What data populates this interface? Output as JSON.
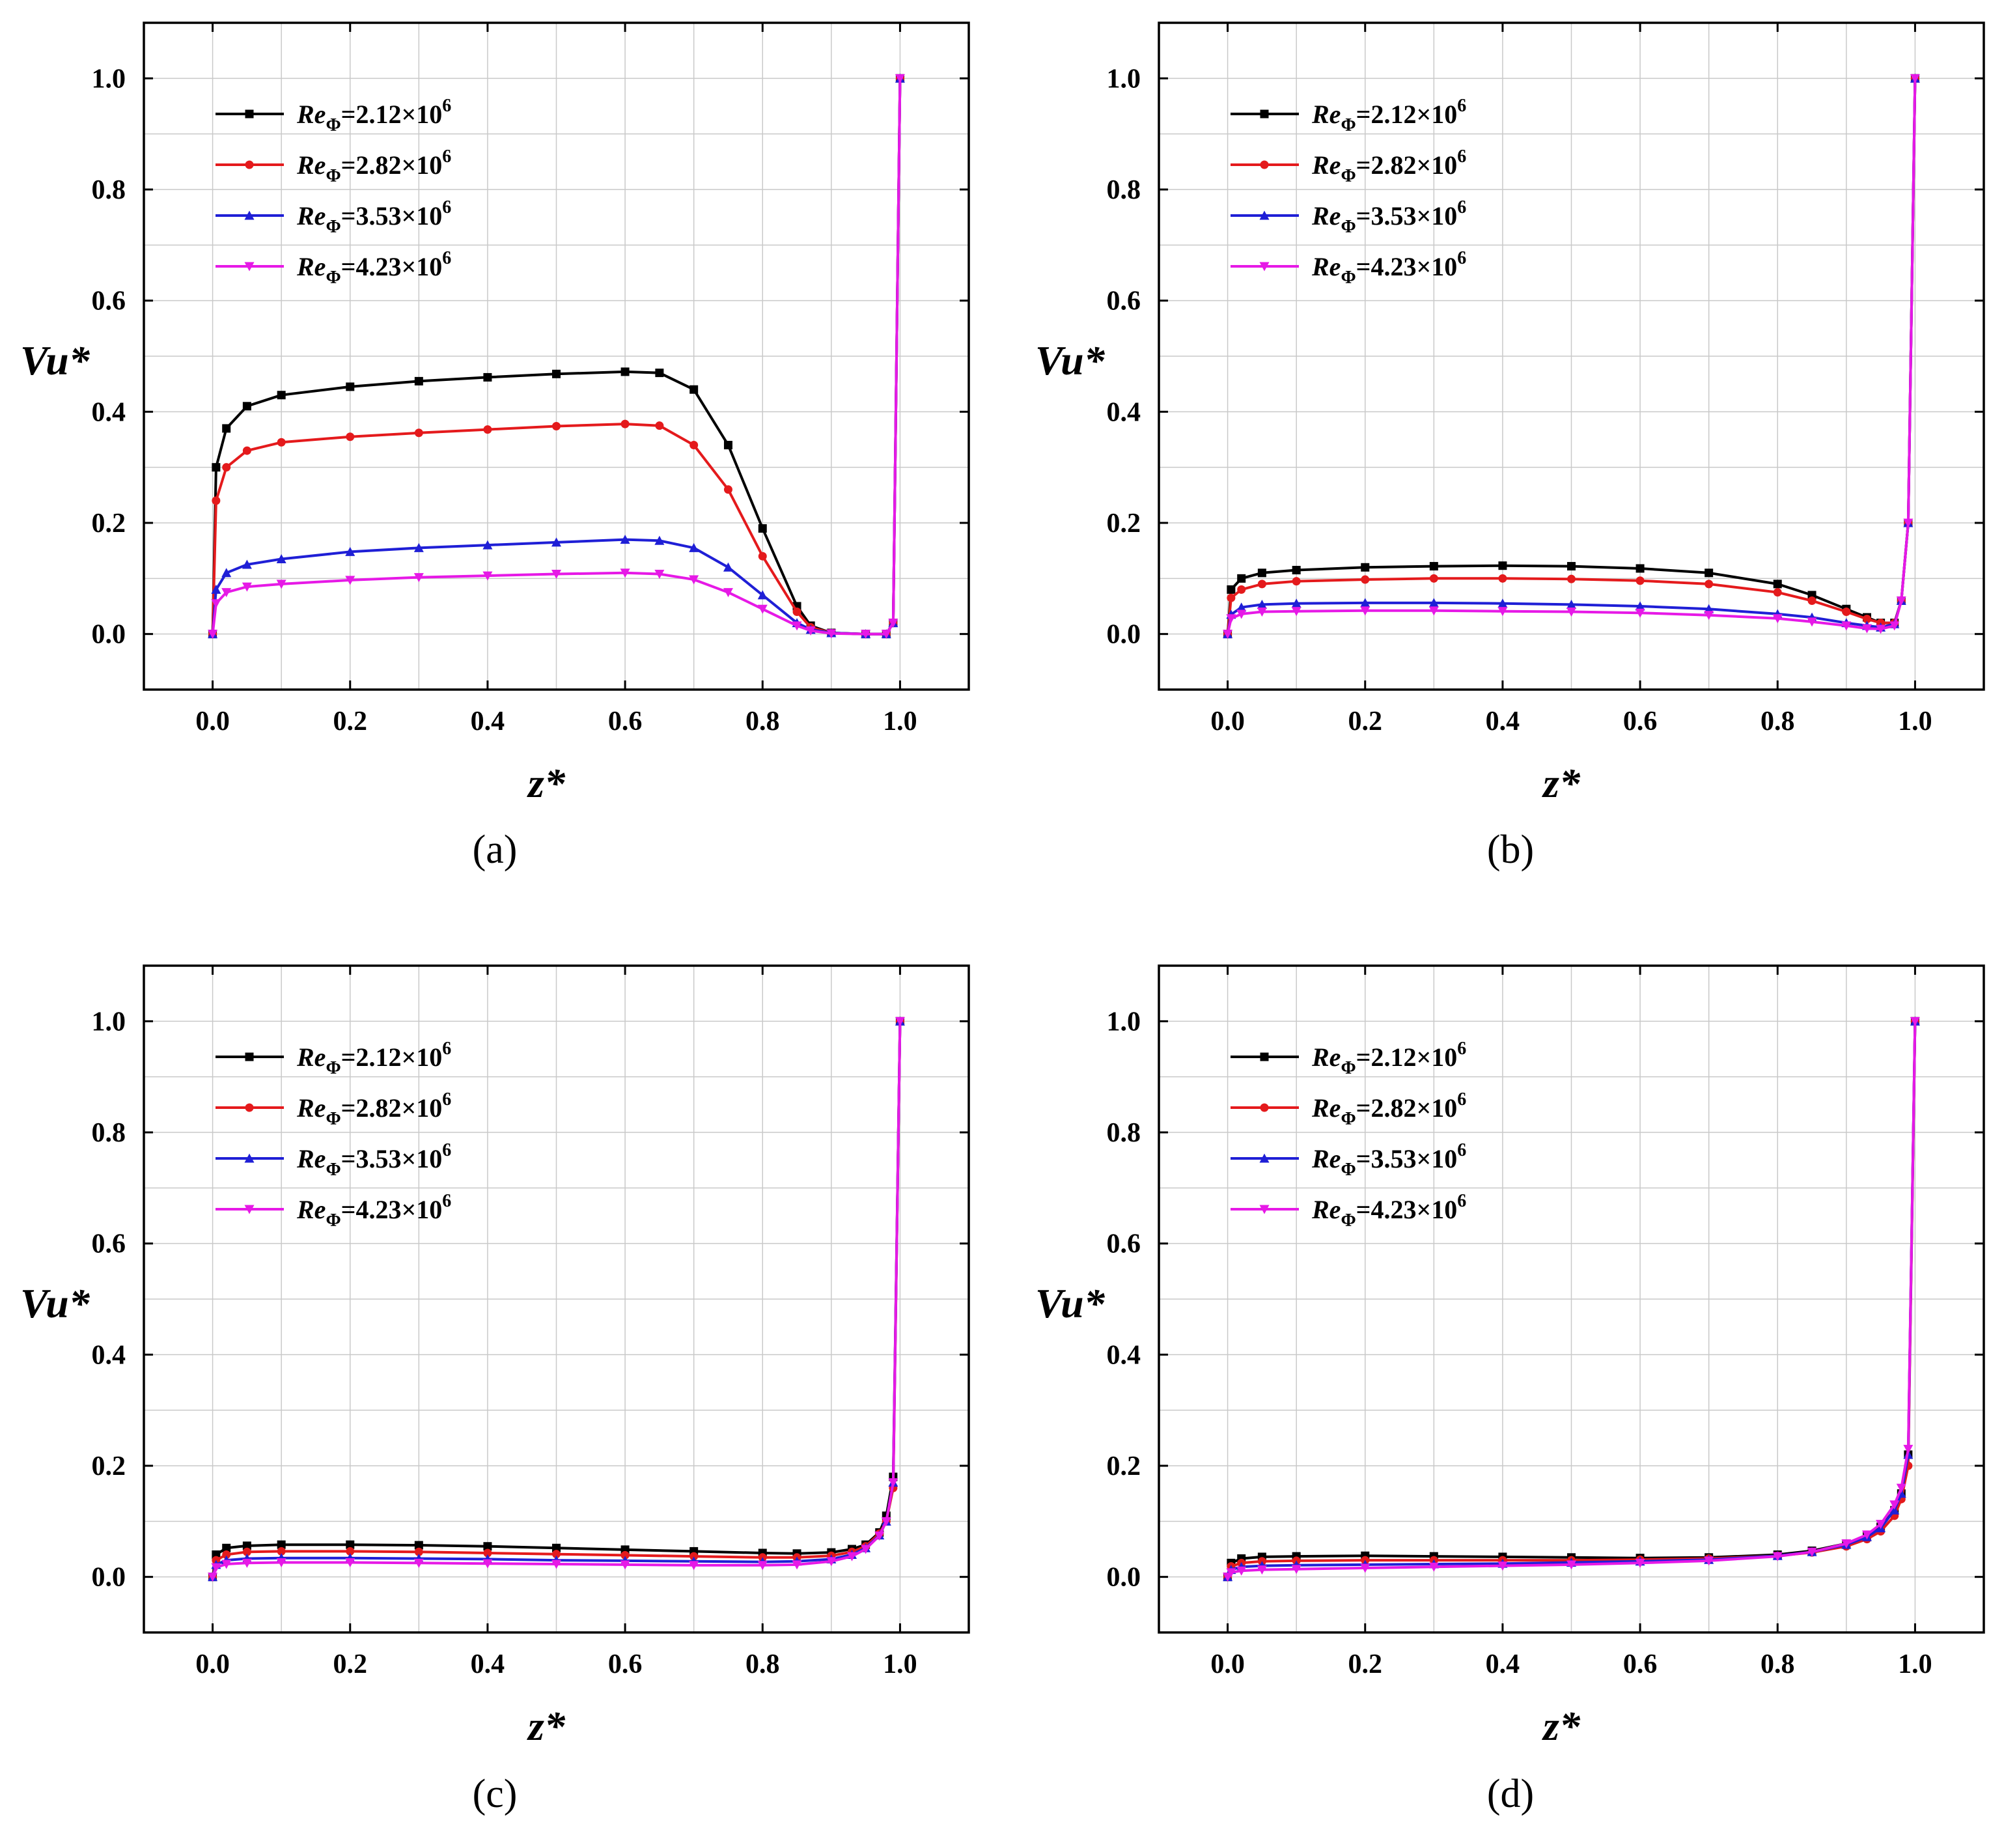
{
  "figure": {
    "x_ticks": [
      "0.0",
      "0.2",
      "0.4",
      "0.6",
      "0.8",
      "1.0"
    ],
    "y_ticks": [
      "0.0",
      "0.2",
      "0.4",
      "0.6",
      "0.8",
      "1.0"
    ]
  },
  "chart_data": [
    {
      "panel": "(a)",
      "type": "line",
      "xlabel": "z*",
      "ylabel": "Vu*",
      "xlim": [
        -0.1,
        1.1
      ],
      "ylim": [
        -0.1,
        1.1
      ],
      "grid": true,
      "legend": "top-left",
      "series": [
        {
          "name": "ReΦ=2.12×10⁶",
          "label_base": "Re",
          "label_sub": "Φ",
          "label_value": "=2.12×10",
          "label_exp": "6",
          "color": "#000000",
          "marker": "square",
          "x": [
            0,
            0.005,
            0.02,
            0.05,
            0.1,
            0.2,
            0.3,
            0.4,
            0.5,
            0.6,
            0.65,
            0.7,
            0.75,
            0.8,
            0.85,
            0.87,
            0.9,
            0.95,
            0.98,
            0.99,
            1.0
          ],
          "y": [
            0,
            0.3,
            0.37,
            0.41,
            0.43,
            0.445,
            0.455,
            0.462,
            0.468,
            0.472,
            0.47,
            0.44,
            0.34,
            0.19,
            0.05,
            0.015,
            0.002,
            0,
            0,
            0.02,
            1.0
          ]
        },
        {
          "name": "ReΦ=2.82×10⁶",
          "label_base": "Re",
          "label_sub": "Φ",
          "label_value": "=2.82×10",
          "label_exp": "6",
          "color": "#e41a1c",
          "marker": "circle",
          "x": [
            0,
            0.005,
            0.02,
            0.05,
            0.1,
            0.2,
            0.3,
            0.4,
            0.5,
            0.6,
            0.65,
            0.7,
            0.75,
            0.8,
            0.85,
            0.87,
            0.9,
            0.95,
            0.98,
            0.99,
            1.0
          ],
          "y": [
            0,
            0.24,
            0.3,
            0.33,
            0.345,
            0.355,
            0.362,
            0.368,
            0.374,
            0.378,
            0.375,
            0.34,
            0.26,
            0.14,
            0.04,
            0.012,
            0.002,
            0,
            0,
            0.02,
            1.0
          ]
        },
        {
          "name": "ReΦ=3.53×10⁶",
          "label_base": "Re",
          "label_sub": "Φ",
          "label_value": "=3.53×10",
          "label_exp": "6",
          "color": "#1f1fd6",
          "marker": "triangle",
          "x": [
            0,
            0.005,
            0.02,
            0.05,
            0.1,
            0.2,
            0.3,
            0.4,
            0.5,
            0.6,
            0.65,
            0.7,
            0.75,
            0.8,
            0.85,
            0.87,
            0.9,
            0.95,
            0.98,
            0.99,
            1.0
          ],
          "y": [
            0,
            0.08,
            0.11,
            0.125,
            0.135,
            0.148,
            0.155,
            0.16,
            0.165,
            0.17,
            0.168,
            0.155,
            0.12,
            0.07,
            0.02,
            0.008,
            0.002,
            0,
            0,
            0.02,
            1.0
          ]
        },
        {
          "name": "ReΦ=4.23×10⁶",
          "label_base": "Re",
          "label_sub": "Φ",
          "label_value": "=4.23×10",
          "label_exp": "6",
          "color": "#e619e6",
          "marker": "triangle-down",
          "x": [
            0,
            0.005,
            0.02,
            0.05,
            0.1,
            0.2,
            0.3,
            0.4,
            0.5,
            0.6,
            0.65,
            0.7,
            0.75,
            0.8,
            0.85,
            0.87,
            0.9,
            0.95,
            0.98,
            0.99,
            1.0
          ],
          "y": [
            0,
            0.055,
            0.075,
            0.085,
            0.09,
            0.097,
            0.102,
            0.105,
            0.108,
            0.11,
            0.108,
            0.098,
            0.075,
            0.045,
            0.015,
            0.006,
            0.001,
            0,
            0,
            0.02,
            1.0
          ]
        }
      ]
    },
    {
      "panel": "(b)",
      "type": "line",
      "xlabel": "z*",
      "ylabel": "Vu*",
      "xlim": [
        -0.1,
        1.1
      ],
      "ylim": [
        -0.1,
        1.1
      ],
      "grid": true,
      "legend": "top-left",
      "series": [
        {
          "name": "ReΦ=2.12×10⁶",
          "label_base": "Re",
          "label_sub": "Φ",
          "label_value": "=2.12×10",
          "label_exp": "6",
          "color": "#000000",
          "marker": "square",
          "x": [
            0,
            0.005,
            0.02,
            0.05,
            0.1,
            0.2,
            0.3,
            0.4,
            0.5,
            0.6,
            0.7,
            0.8,
            0.85,
            0.9,
            0.93,
            0.95,
            0.97,
            0.98,
            0.99,
            1.0
          ],
          "y": [
            0,
            0.08,
            0.1,
            0.11,
            0.115,
            0.12,
            0.122,
            0.123,
            0.122,
            0.118,
            0.11,
            0.09,
            0.07,
            0.045,
            0.03,
            0.02,
            0.02,
            0.06,
            0.2,
            1.0
          ]
        },
        {
          "name": "ReΦ=2.82×10⁶",
          "label_base": "Re",
          "label_sub": "Φ",
          "label_value": "=2.82×10",
          "label_exp": "6",
          "color": "#e41a1c",
          "marker": "circle",
          "x": [
            0,
            0.005,
            0.02,
            0.05,
            0.1,
            0.2,
            0.3,
            0.4,
            0.5,
            0.6,
            0.7,
            0.8,
            0.85,
            0.9,
            0.93,
            0.95,
            0.97,
            0.98,
            0.99,
            1.0
          ],
          "y": [
            0,
            0.065,
            0.08,
            0.09,
            0.095,
            0.098,
            0.1,
            0.1,
            0.099,
            0.096,
            0.09,
            0.075,
            0.06,
            0.04,
            0.027,
            0.02,
            0.02,
            0.06,
            0.2,
            1.0
          ]
        },
        {
          "name": "ReΦ=3.53×10⁶",
          "label_base": "Re",
          "label_sub": "Φ",
          "label_value": "=3.53×10",
          "label_exp": "6",
          "color": "#1f1fd6",
          "marker": "triangle",
          "x": [
            0,
            0.005,
            0.02,
            0.05,
            0.1,
            0.2,
            0.3,
            0.4,
            0.5,
            0.6,
            0.7,
            0.8,
            0.85,
            0.9,
            0.93,
            0.95,
            0.97,
            0.98,
            0.99,
            1.0
          ],
          "y": [
            0,
            0.035,
            0.048,
            0.053,
            0.055,
            0.056,
            0.056,
            0.055,
            0.053,
            0.05,
            0.045,
            0.036,
            0.03,
            0.02,
            0.015,
            0.012,
            0.018,
            0.06,
            0.2,
            1.0
          ]
        },
        {
          "name": "ReΦ=4.23×10⁶",
          "label_base": "Re",
          "label_sub": "Φ",
          "label_value": "=4.23×10",
          "label_exp": "6",
          "color": "#e619e6",
          "marker": "triangle-down",
          "x": [
            0,
            0.005,
            0.02,
            0.05,
            0.1,
            0.2,
            0.3,
            0.4,
            0.5,
            0.6,
            0.7,
            0.8,
            0.85,
            0.9,
            0.93,
            0.95,
            0.97,
            0.98,
            0.99,
            1.0
          ],
          "y": [
            0,
            0.028,
            0.036,
            0.04,
            0.041,
            0.042,
            0.042,
            0.041,
            0.04,
            0.038,
            0.034,
            0.028,
            0.022,
            0.015,
            0.01,
            0.009,
            0.015,
            0.06,
            0.2,
            1.0
          ]
        }
      ]
    },
    {
      "panel": "(c)",
      "type": "line",
      "xlabel": "z*",
      "ylabel": "Vu*",
      "xlim": [
        -0.1,
        1.1
      ],
      "ylim": [
        -0.1,
        1.1
      ],
      "grid": true,
      "legend": "top-left",
      "series": [
        {
          "name": "ReΦ=2.12×10⁶",
          "label_base": "Re",
          "label_sub": "Φ",
          "label_value": "=2.12×10",
          "label_exp": "6",
          "color": "#000000",
          "marker": "square",
          "x": [
            0,
            0.005,
            0.02,
            0.05,
            0.1,
            0.2,
            0.3,
            0.4,
            0.5,
            0.6,
            0.7,
            0.8,
            0.85,
            0.9,
            0.93,
            0.95,
            0.97,
            0.98,
            0.99,
            1.0
          ],
          "y": [
            0,
            0.04,
            0.052,
            0.056,
            0.058,
            0.058,
            0.057,
            0.055,
            0.052,
            0.049,
            0.046,
            0.043,
            0.042,
            0.044,
            0.05,
            0.058,
            0.08,
            0.11,
            0.18,
            1.0
          ]
        },
        {
          "name": "ReΦ=2.82×10⁶",
          "label_base": "Re",
          "label_sub": "Φ",
          "label_value": "=2.82×10",
          "label_exp": "6",
          "color": "#e41a1c",
          "marker": "circle",
          "x": [
            0,
            0.005,
            0.02,
            0.05,
            0.1,
            0.2,
            0.3,
            0.4,
            0.5,
            0.6,
            0.7,
            0.8,
            0.85,
            0.9,
            0.93,
            0.95,
            0.97,
            0.98,
            0.99,
            1.0
          ],
          "y": [
            0,
            0.03,
            0.04,
            0.045,
            0.046,
            0.046,
            0.045,
            0.043,
            0.041,
            0.039,
            0.037,
            0.035,
            0.035,
            0.038,
            0.045,
            0.055,
            0.078,
            0.1,
            0.16,
            1.0
          ]
        },
        {
          "name": "ReΦ=3.53×10⁶",
          "label_base": "Re",
          "label_sub": "Φ",
          "label_value": "=3.53×10",
          "label_exp": "6",
          "color": "#1f1fd6",
          "marker": "triangle",
          "x": [
            0,
            0.005,
            0.02,
            0.05,
            0.1,
            0.2,
            0.3,
            0.4,
            0.5,
            0.6,
            0.7,
            0.8,
            0.85,
            0.9,
            0.93,
            0.95,
            0.97,
            0.98,
            0.99,
            1.0
          ],
          "y": [
            0,
            0.022,
            0.03,
            0.033,
            0.034,
            0.034,
            0.033,
            0.032,
            0.03,
            0.029,
            0.028,
            0.027,
            0.028,
            0.032,
            0.04,
            0.052,
            0.075,
            0.1,
            0.17,
            1.0
          ]
        },
        {
          "name": "ReΦ=4.23×10⁶",
          "label_base": "Re",
          "label_sub": "Φ",
          "label_value": "=4.23×10",
          "label_exp": "6",
          "color": "#e619e6",
          "marker": "triangle-down",
          "x": [
            0,
            0.005,
            0.02,
            0.05,
            0.1,
            0.2,
            0.3,
            0.4,
            0.5,
            0.6,
            0.7,
            0.8,
            0.85,
            0.9,
            0.93,
            0.95,
            0.97,
            0.98,
            0.99,
            1.0
          ],
          "y": [
            0,
            0.017,
            0.023,
            0.025,
            0.026,
            0.026,
            0.025,
            0.024,
            0.023,
            0.022,
            0.021,
            0.021,
            0.022,
            0.028,
            0.037,
            0.05,
            0.074,
            0.1,
            0.17,
            1.0
          ]
        }
      ]
    },
    {
      "panel": "(d)",
      "type": "line",
      "xlabel": "z*",
      "ylabel": "Vu*",
      "xlim": [
        -0.1,
        1.1
      ],
      "ylim": [
        -0.1,
        1.1
      ],
      "grid": true,
      "legend": "top-left",
      "series": [
        {
          "name": "ReΦ=2.12×10⁶",
          "label_base": "Re",
          "label_sub": "Φ",
          "label_value": "=2.12×10",
          "label_exp": "6",
          "color": "#000000",
          "marker": "square",
          "x": [
            0,
            0.005,
            0.02,
            0.05,
            0.1,
            0.2,
            0.3,
            0.4,
            0.5,
            0.6,
            0.7,
            0.8,
            0.85,
            0.9,
            0.93,
            0.95,
            0.97,
            0.98,
            0.99,
            1.0
          ],
          "y": [
            0,
            0.025,
            0.033,
            0.036,
            0.037,
            0.038,
            0.037,
            0.036,
            0.035,
            0.034,
            0.035,
            0.04,
            0.047,
            0.06,
            0.075,
            0.09,
            0.12,
            0.15,
            0.22,
            1.0
          ]
        },
        {
          "name": "ReΦ=2.82×10⁶",
          "label_base": "Re",
          "label_sub": "Φ",
          "label_value": "=2.82×10",
          "label_exp": "6",
          "color": "#e41a1c",
          "marker": "circle",
          "x": [
            0,
            0.005,
            0.02,
            0.05,
            0.1,
            0.2,
            0.3,
            0.4,
            0.5,
            0.6,
            0.7,
            0.8,
            0.85,
            0.9,
            0.93,
            0.95,
            0.97,
            0.98,
            0.99,
            1.0
          ],
          "y": [
            0,
            0.019,
            0.025,
            0.028,
            0.029,
            0.03,
            0.03,
            0.03,
            0.03,
            0.031,
            0.033,
            0.038,
            0.044,
            0.055,
            0.068,
            0.082,
            0.11,
            0.14,
            0.2,
            1.0
          ]
        },
        {
          "name": "ReΦ=3.53×10⁶",
          "label_base": "Re",
          "label_sub": "Φ",
          "label_value": "=3.53×10",
          "label_exp": "6",
          "color": "#1f1fd6",
          "marker": "triangle",
          "x": [
            0,
            0.005,
            0.02,
            0.05,
            0.1,
            0.2,
            0.3,
            0.4,
            0.5,
            0.6,
            0.7,
            0.8,
            0.85,
            0.9,
            0.93,
            0.95,
            0.97,
            0.98,
            0.99,
            1.0
          ],
          "y": [
            0,
            0.013,
            0.018,
            0.02,
            0.021,
            0.022,
            0.023,
            0.024,
            0.026,
            0.028,
            0.031,
            0.038,
            0.045,
            0.058,
            0.072,
            0.088,
            0.12,
            0.15,
            0.22,
            1.0
          ]
        },
        {
          "name": "ReΦ=4.23×10⁶",
          "label_base": "Re",
          "label_sub": "Φ",
          "label_value": "=4.23×10",
          "label_exp": "6",
          "color": "#e619e6",
          "marker": "triangle-down",
          "x": [
            0,
            0.005,
            0.02,
            0.05,
            0.1,
            0.2,
            0.3,
            0.4,
            0.5,
            0.6,
            0.7,
            0.8,
            0.85,
            0.9,
            0.93,
            0.95,
            0.97,
            0.98,
            0.99,
            1.0
          ],
          "y": [
            0,
            0.008,
            0.011,
            0.013,
            0.014,
            0.016,
            0.018,
            0.02,
            0.022,
            0.025,
            0.029,
            0.037,
            0.045,
            0.06,
            0.076,
            0.095,
            0.13,
            0.16,
            0.23,
            1.0
          ]
        }
      ]
    }
  ]
}
